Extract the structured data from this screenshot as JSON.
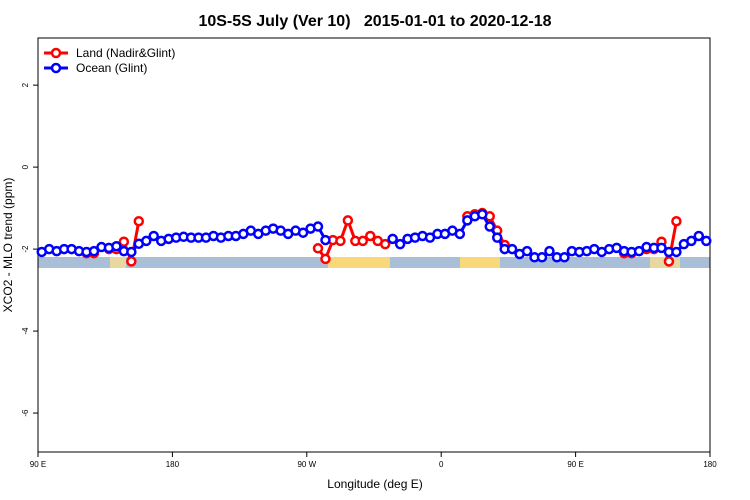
{
  "chart_data": {
    "type": "line",
    "title": "10S-5S July (Ver 10)   2015-01-01 to 2020-12-18",
    "xlabel": "Longitude (deg E)",
    "ylabel": "XCO2 - MLO trend (ppm)",
    "xlim": [
      90,
      540
    ],
    "xticks": [
      {
        "value": 90,
        "label": "90 E"
      },
      180,
      {
        "value": 270,
        "label": "90 W"
      },
      {
        "value": 360,
        "label": "0"
      },
      {
        "value": 450,
        "label": "90 E"
      },
      {
        "value": 540,
        "label": "180"
      }
    ],
    "ylim": [
      -6.95,
      3.15
    ],
    "yticks": [
      -6,
      -4,
      -2,
      0,
      2
    ],
    "legend": "topleft",
    "series": [
      {
        "name": "Land (Nadir&Glint)",
        "color": "#ff0000",
        "x": [
          122.5,
          127.5,
          132.5,
          137.5,
          142.5,
          147.5,
          152.5,
          157.5,
          162.5,
          277.5,
          282.5,
          287.5,
          292.5,
          297.5,
          302.5,
          307.5,
          312.5,
          317.5,
          322.5,
          327.5,
          377.5,
          382.5,
          387.5,
          392.5,
          397.5,
          402.5,
          407.5,
          482.5,
          487.5,
          492.5,
          497.5,
          502.5,
          507.5,
          512.5,
          517.5
        ],
        "values": [
          -2.1,
          -2.1,
          null,
          -2.0,
          -2.0,
          -1.82,
          -2.3,
          -1.32,
          null,
          -1.98,
          -2.24,
          -1.78,
          -1.8,
          -1.3,
          -1.8,
          -1.8,
          -1.68,
          -1.8,
          -1.88,
          null,
          -1.2,
          -1.15,
          -1.12,
          -1.2,
          -1.55,
          -1.9,
          null,
          -2.1,
          -2.1,
          null,
          -2.0,
          -2.0,
          -1.82,
          -2.3,
          -1.32
        ]
      },
      {
        "name": "Ocean (Glint)",
        "color": "#0000ff",
        "x": [
          92.5,
          97.5,
          102.5,
          107.5,
          112.5,
          117.5,
          122.5,
          127.5,
          132.5,
          137.5,
          142.5,
          147.5,
          152.5,
          157.5,
          162.5,
          167.5,
          172.5,
          177.5,
          182.5,
          187.5,
          192.5,
          197.5,
          202.5,
          207.5,
          212.5,
          217.5,
          222.5,
          227.5,
          232.5,
          237.5,
          242.5,
          247.5,
          252.5,
          257.5,
          262.5,
          267.5,
          272.5,
          277.5,
          282.5,
          287.5,
          292.5,
          297.5,
          302.5,
          307.5,
          312.5,
          317.5,
          322.5,
          327.5,
          332.5,
          337.5,
          342.5,
          347.5,
          352.5,
          357.5,
          362.5,
          367.5,
          372.5,
          377.5,
          382.5,
          387.5,
          392.5,
          397.5,
          402.5,
          407.5,
          412.5,
          417.5,
          422.5,
          427.5,
          432.5,
          437.5,
          442.5,
          447.5,
          452.5,
          457.5,
          462.5,
          467.5,
          472.5,
          477.5,
          482.5,
          487.5,
          492.5,
          497.5,
          502.5,
          507.5,
          512.5,
          517.5,
          522.5,
          527.5,
          532.5,
          537.5
        ],
        "values": [
          -2.07,
          -2.0,
          -2.05,
          -2.0,
          -2.0,
          -2.05,
          -2.07,
          -2.05,
          -1.95,
          -1.97,
          -1.93,
          -2.05,
          -2.07,
          -1.87,
          -1.8,
          -1.68,
          -1.8,
          -1.75,
          -1.72,
          -1.7,
          -1.72,
          -1.72,
          -1.72,
          -1.68,
          -1.72,
          -1.68,
          -1.68,
          -1.63,
          -1.55,
          -1.63,
          -1.55,
          -1.5,
          -1.55,
          -1.63,
          -1.55,
          -1.6,
          -1.5,
          -1.45,
          -1.78,
          null,
          null,
          null,
          null,
          null,
          null,
          null,
          null,
          -1.75,
          -1.88,
          -1.75,
          -1.72,
          -1.68,
          -1.72,
          -1.63,
          -1.63,
          -1.55,
          -1.63,
          -1.3,
          -1.2,
          -1.15,
          -1.45,
          -1.72,
          -2.0,
          -2.0,
          -2.12,
          -2.05,
          -2.2,
          -2.2,
          -2.05,
          -2.2,
          -2.2,
          -2.05,
          -2.07,
          -2.05,
          -2.0,
          -2.07,
          -2.0,
          -1.97,
          -2.05,
          -2.07,
          -2.05,
          -1.95,
          -1.97,
          -1.97,
          -2.07,
          -2.07,
          -1.88,
          -1.8,
          -1.68,
          -1.8
        ]
      }
    ]
  }
}
